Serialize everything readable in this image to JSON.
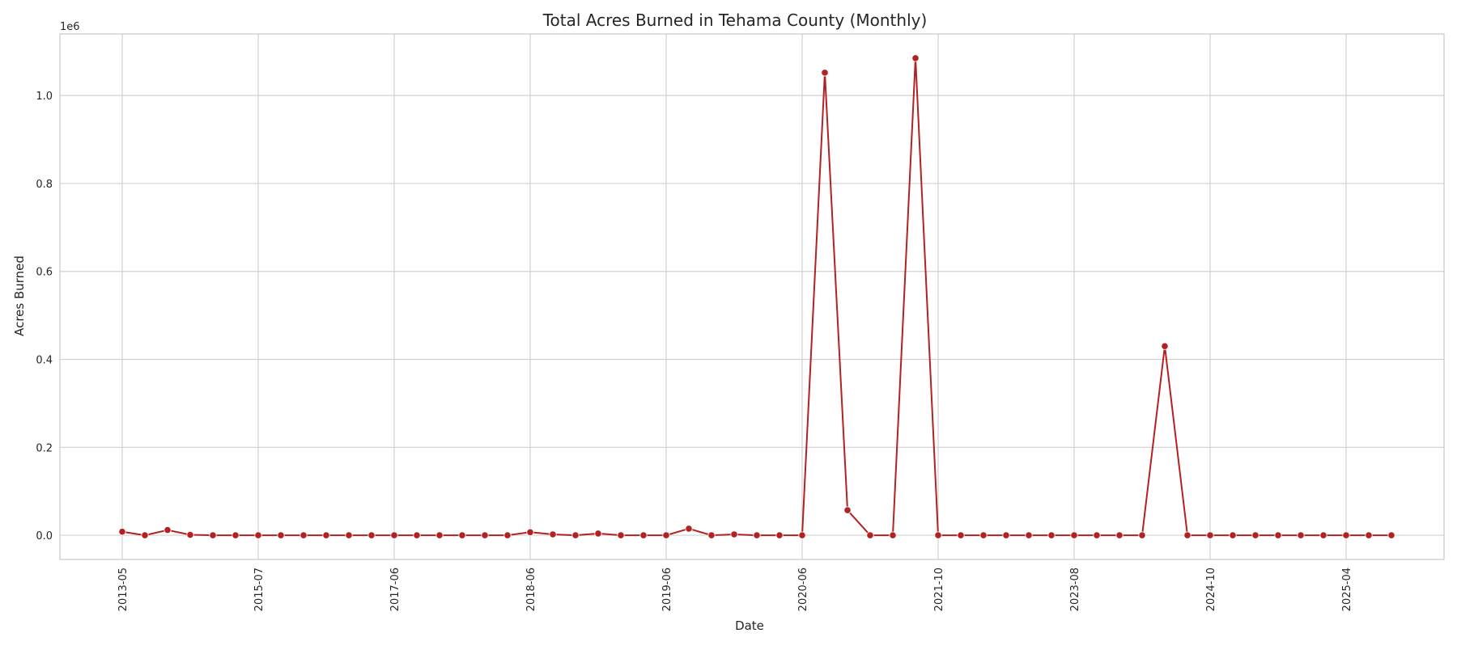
{
  "chart_data": {
    "type": "line",
    "title": "Total Acres Burned in Tehama County (Monthly)",
    "xlabel": "Date",
    "ylabel": "Acres Burned",
    "y_offset_label": "1e6",
    "ylim": [
      -55000,
      1140000
    ],
    "yticks": [
      0,
      200000,
      400000,
      600000,
      800000,
      1000000
    ],
    "ytick_labels": [
      "0.0",
      "0.2",
      "0.4",
      "0.6",
      "0.8",
      "1.0"
    ],
    "xtick_labels": [
      "2013-05",
      "2015-07",
      "2017-06",
      "2018-06",
      "2019-06",
      "2020-06",
      "2021-10",
      "2023-08",
      "2024-10",
      "2025-04"
    ],
    "xtick_indices": [
      0,
      6,
      12,
      18,
      24,
      30,
      36,
      42,
      48,
      54
    ],
    "grid": true,
    "line_color": "#b22222",
    "series": [
      {
        "values": [
          8000,
          0,
          12000,
          1000,
          0,
          0,
          0,
          0,
          0,
          0,
          0,
          0,
          0,
          0,
          0,
          0,
          0,
          0,
          7000,
          2000,
          0,
          4000,
          0,
          0,
          0,
          15000,
          0,
          2000,
          0,
          0,
          0,
          1052000,
          57000,
          0,
          0,
          1085000,
          0,
          0,
          0,
          0,
          0,
          0,
          0,
          0,
          0,
          0,
          430000,
          0,
          0,
          0,
          0,
          0,
          0,
          0,
          0,
          0,
          0
        ]
      }
    ]
  }
}
